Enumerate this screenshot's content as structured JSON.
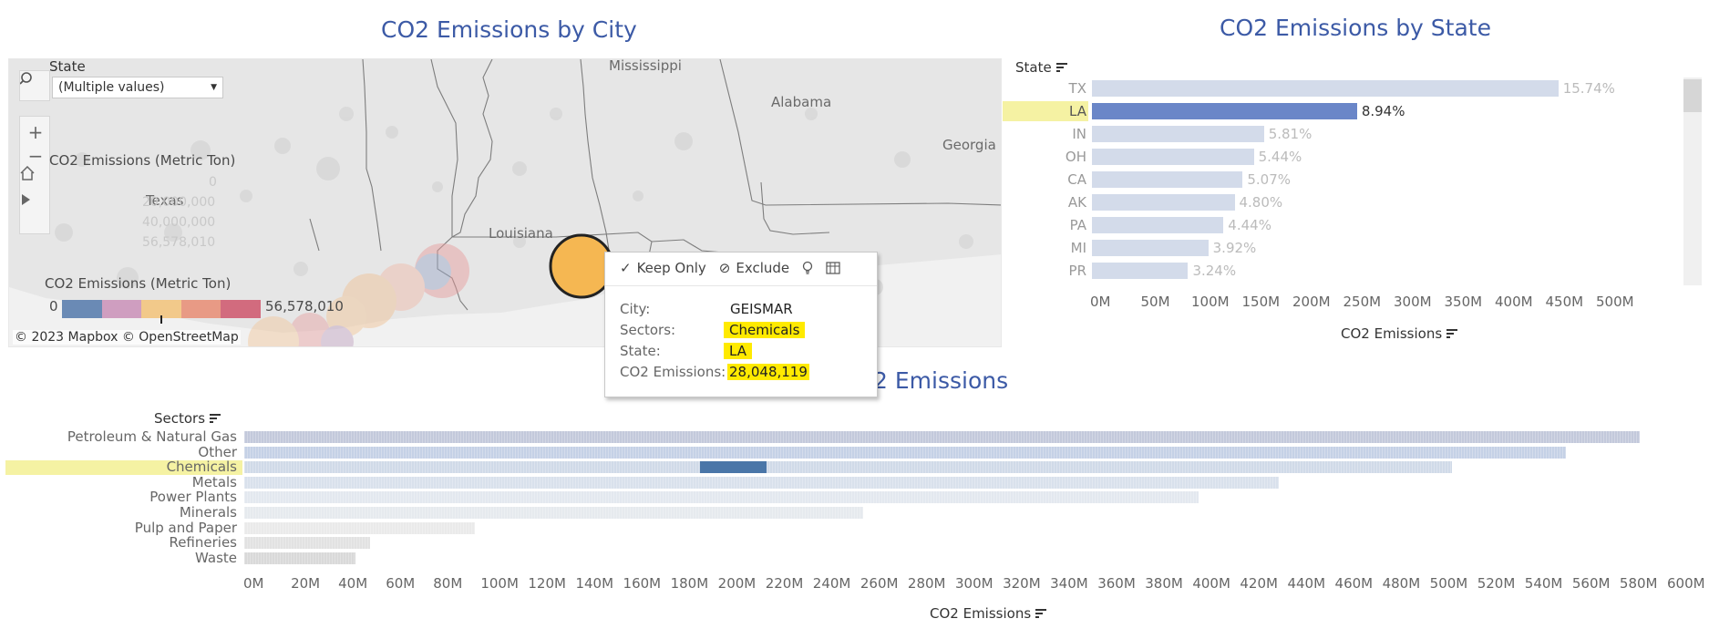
{
  "titles": {
    "city": "CO2 Emissions by City",
    "state": "CO2 Emissions by State",
    "sector_partial": "2 Emissions"
  },
  "map": {
    "state_filter_label": "State",
    "state_filter_value": "(Multiple values)",
    "place_labels": {
      "mississippi": "Mississippi",
      "alabama": "Alabama",
      "georgia": "Georgia",
      "louisiana": "Louisiana",
      "texas": "Texas"
    },
    "size_legend": {
      "title": "CO2 Emissions (Metric Ton)",
      "items": [
        "0",
        "20,000,000",
        "40,000,000",
        "56,578,010"
      ]
    },
    "color_legend": {
      "title": "CO2 Emissions (Metric Ton)",
      "min": "0",
      "max": "56,578,010",
      "colors": [
        "#6a8ab5",
        "#cf9ec0",
        "#f2c98a",
        "#e89a85",
        "#d26b7e"
      ]
    },
    "attribution": "© 2023 Mapbox  © OpenStreetMap",
    "controls": [
      "zoom-in",
      "zoom-out",
      "home",
      "play"
    ]
  },
  "tooltip": {
    "actions": {
      "keep_only": "Keep Only",
      "exclude": "Exclude"
    },
    "fields": {
      "city_label": "City:",
      "city_value": "GEISMAR",
      "sectors_label": "Sectors:",
      "sectors_value": "Chemicals",
      "state_label": "State:",
      "state_value": "LA",
      "emissions_label": "CO2 Emissions:",
      "emissions_value": "28,048,119"
    }
  },
  "state_chart": {
    "field_label": "State",
    "axis_label": "CO2 Emissions",
    "accent": "#6a86c8",
    "faded": "#d3dbea",
    "highlight_row": "#f5f2a3",
    "ticks": [
      "0M",
      "50M",
      "100M",
      "150M",
      "200M",
      "250M",
      "300M",
      "350M",
      "400M",
      "450M",
      "500M"
    ],
    "rows": [
      {
        "state": "TX",
        "pct": "15.74%",
        "value": 461,
        "selected": false
      },
      {
        "state": "LA",
        "pct": "8.94%",
        "value": 262,
        "selected": true
      },
      {
        "state": "IN",
        "pct": "5.81%",
        "value": 170,
        "selected": false
      },
      {
        "state": "OH",
        "pct": "5.44%",
        "value": 160,
        "selected": false
      },
      {
        "state": "CA",
        "pct": "5.07%",
        "value": 149,
        "selected": false
      },
      {
        "state": "AK",
        "pct": "4.80%",
        "value": 141,
        "selected": false
      },
      {
        "state": "PA",
        "pct": "4.44%",
        "value": 130,
        "selected": false
      },
      {
        "state": "MI",
        "pct": "3.92%",
        "value": 115,
        "selected": false
      },
      {
        "state": "PR",
        "pct": "3.24%",
        "value": 95,
        "selected": false
      }
    ]
  },
  "sector_chart": {
    "field_label": "Sectors",
    "axis_label": "CO2 Emissions",
    "ticks": [
      "0M",
      "20M",
      "40M",
      "60M",
      "80M",
      "100M",
      "120M",
      "140M",
      "160M",
      "180M",
      "200M",
      "220M",
      "240M",
      "260M",
      "280M",
      "300M",
      "320M",
      "340M",
      "360M",
      "380M",
      "400M",
      "420M",
      "440M",
      "460M",
      "480M",
      "500M",
      "520M",
      "540M",
      "560M",
      "580M",
      "600M"
    ],
    "rows": [
      {
        "sector": "Petroleum & Natural Gas",
        "value": 588,
        "color": "#c3c9db"
      },
      {
        "sector": "Other",
        "value": 557,
        "color": "#c5d1e6"
      },
      {
        "sector": "Chemicals",
        "value": 509,
        "color": "#d0dae8",
        "selected": true,
        "seg_start": 192,
        "seg_end": 220
      },
      {
        "sector": "Metals",
        "value": 436,
        "color": "#d9e1ec"
      },
      {
        "sector": "Power Plants",
        "value": 402,
        "color": "#e3e8ef"
      },
      {
        "sector": "Minerals",
        "value": 261,
        "color": "#e6eaee"
      },
      {
        "sector": "Pulp and Paper",
        "value": 97,
        "color": "#eaeaea"
      },
      {
        "sector": "Refineries",
        "value": 53,
        "color": "#e2e2e2"
      },
      {
        "sector": "Waste",
        "value": 47,
        "color": "#d9d9d9"
      }
    ],
    "selected_color": "#4a76a8",
    "highlight_row": "#f5f2a3"
  }
}
